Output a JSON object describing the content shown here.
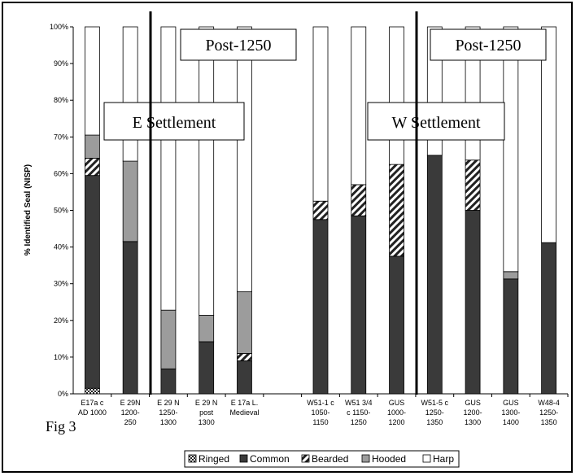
{
  "figure_label": "Fig 3",
  "chart_data": {
    "type": "bar",
    "stacked": true,
    "normalized": true,
    "title": "",
    "xlabel": "",
    "ylabel": "% Identified Seal (NISP)",
    "ylim": [
      0,
      100
    ],
    "yticks": [
      "0%",
      "10%",
      "20%",
      "30%",
      "40%",
      "50%",
      "60%",
      "70%",
      "80%",
      "90%",
      "100%"
    ],
    "grid": false,
    "legend_position": "bottom",
    "categories": [
      [
        "E17a c",
        "AD 1000"
      ],
      [
        "E 29N",
        "1200-",
        "250"
      ],
      [
        "E 29 N",
        "1250-",
        "1300"
      ],
      [
        "E 29 N",
        "post",
        "1300"
      ],
      [
        "E 17a L.",
        "Medieval"
      ],
      [],
      [
        "W51-1 c",
        "1050-",
        "1150"
      ],
      [
        "W51 3/4",
        "c 1150-",
        "1250"
      ],
      [
        "GUS",
        "1000-",
        "1200"
      ],
      [
        "W51-5 c",
        "1250-",
        "1350"
      ],
      [
        "GUS",
        "1200-",
        "1300"
      ],
      [
        "GUS",
        "1300-",
        "1400"
      ],
      [
        "W48-4",
        "1250-",
        "1350"
      ]
    ],
    "series": [
      {
        "name": "Ringed",
        "values": [
          1.5,
          0,
          0,
          0,
          0,
          null,
          0,
          0,
          0,
          0,
          0,
          0,
          0
        ]
      },
      {
        "name": "Common",
        "values": [
          58,
          41.5,
          6.8,
          14.2,
          9,
          null,
          47.5,
          48.5,
          37.5,
          65,
          50,
          31.3,
          41.2
        ]
      },
      {
        "name": "Bearded",
        "values": [
          4.7,
          0,
          0,
          0,
          2,
          null,
          5,
          8.5,
          25,
          0,
          13.7,
          0,
          0
        ]
      },
      {
        "name": "Hooded",
        "values": [
          6.3,
          21.9,
          16,
          7.2,
          16.8,
          null,
          0,
          0,
          0,
          0,
          0,
          2,
          0
        ]
      },
      {
        "name": "Harp",
        "values": [
          29.5,
          36.6,
          77.2,
          78.6,
          72.2,
          null,
          47.5,
          43,
          37.5,
          35,
          36.3,
          66.7,
          58.8
        ]
      }
    ],
    "colors": {
      "Ringed": "#ffffff",
      "Common": "#3a3a3a",
      "Bearded": "#ffffff",
      "Hooded": "#9c9c9c",
      "Harp": "#ffffff"
    },
    "annotations": [
      {
        "text": "Post-1250",
        "region": "east"
      },
      {
        "text": "E Settlement",
        "region": "east"
      },
      {
        "text": "Post-1250",
        "region": "west"
      },
      {
        "text": "W Settlement",
        "region": "west"
      }
    ]
  }
}
